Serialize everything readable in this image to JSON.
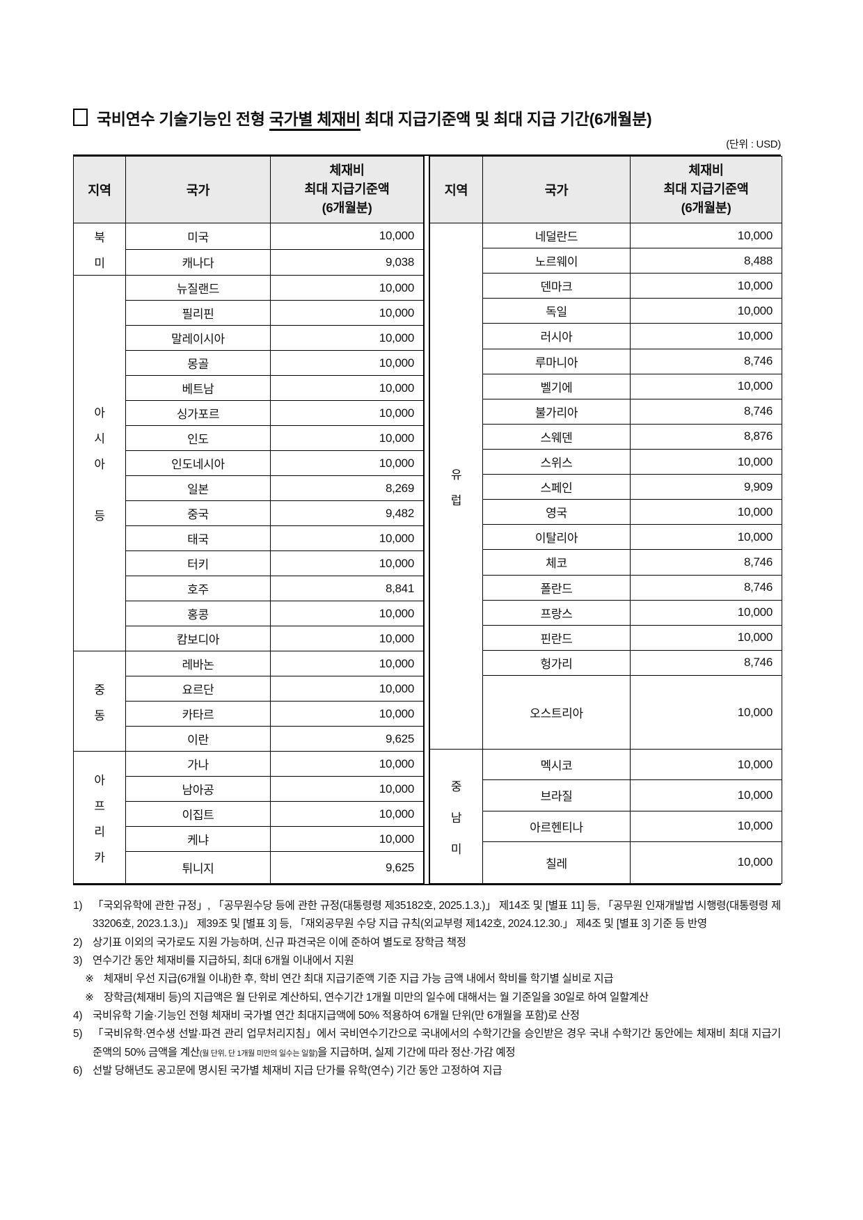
{
  "title": {
    "part1": "국비연수 기술기능인 전형 ",
    "underlined": "국가별 체재비",
    "part2": " 최대 지급기준액 및 최대 지급 기간(6개월분)"
  },
  "unit_label": "(단위 : USD)",
  "table": {
    "headers": {
      "region": "지역",
      "country": "국가",
      "amount_lines": [
        "체재비",
        "최대 지급기준액",
        "(6개월분)"
      ]
    },
    "left": {
      "sections": [
        {
          "region": "북미",
          "rows": [
            {
              "country": "미국",
              "amount": "10,000"
            },
            {
              "country": "캐나다",
              "amount": "9,038"
            }
          ]
        },
        {
          "region": "아시아 등",
          "rows": [
            {
              "country": "뉴질랜드",
              "amount": "10,000"
            },
            {
              "country": "필리핀",
              "amount": "10,000"
            },
            {
              "country": "말레이시아",
              "amount": "10,000"
            },
            {
              "country": "몽골",
              "amount": "10,000"
            },
            {
              "country": "베트남",
              "amount": "10,000"
            },
            {
              "country": "싱가포르",
              "amount": "10,000"
            },
            {
              "country": "인도",
              "amount": "10,000"
            },
            {
              "country": "인도네시아",
              "amount": "10,000"
            },
            {
              "country": "일본",
              "amount": "8,269"
            },
            {
              "country": "중국",
              "amount": "9,482"
            },
            {
              "country": "태국",
              "amount": "10,000"
            },
            {
              "country": "터키",
              "amount": "10,000"
            },
            {
              "country": "호주",
              "amount": "8,841"
            },
            {
              "country": "홍콩",
              "amount": "10,000"
            },
            {
              "country": "캄보디아",
              "amount": "10,000"
            }
          ]
        },
        {
          "region": "중동",
          "rows": [
            {
              "country": "레바논",
              "amount": "10,000"
            },
            {
              "country": "요르단",
              "amount": "10,000"
            },
            {
              "country": "카타르",
              "amount": "10,000"
            },
            {
              "country": "이란",
              "amount": "9,625"
            }
          ]
        },
        {
          "region": "아프리카",
          "rows": [
            {
              "country": "가나",
              "amount": "10,000"
            },
            {
              "country": "남아공",
              "amount": "10,000"
            },
            {
              "country": "이집트",
              "amount": "10,000"
            },
            {
              "country": "케냐",
              "amount": "10,000"
            },
            {
              "country": "튀니지",
              "amount": "9,625"
            }
          ]
        }
      ]
    },
    "right": {
      "sections": [
        {
          "region": "유럽",
          "rows": [
            {
              "country": "네덜란드",
              "amount": "10,000"
            },
            {
              "country": "노르웨이",
              "amount": "8,488"
            },
            {
              "country": "덴마크",
              "amount": "10,000"
            },
            {
              "country": "독일",
              "amount": "10,000"
            },
            {
              "country": "러시아",
              "amount": "10,000"
            },
            {
              "country": "루마니아",
              "amount": "8,746"
            },
            {
              "country": "벨기에",
              "amount": "10,000"
            },
            {
              "country": "불가리아",
              "amount": "8,746"
            },
            {
              "country": "스웨덴",
              "amount": "8,876"
            },
            {
              "country": "스위스",
              "amount": "10,000"
            },
            {
              "country": "스페인",
              "amount": "9,909"
            },
            {
              "country": "영국",
              "amount": "10,000"
            },
            {
              "country": "이탈리아",
              "amount": "10,000"
            },
            {
              "country": "체코",
              "amount": "8,746"
            },
            {
              "country": "폴란드",
              "amount": "8,746"
            },
            {
              "country": "프랑스",
              "amount": "10,000"
            },
            {
              "country": "핀란드",
              "amount": "10,000"
            },
            {
              "country": "헝가리",
              "amount": "8,746"
            },
            {
              "country": "오스트리아",
              "amount": "10,000"
            }
          ]
        },
        {
          "region": "중남미",
          "rows": [
            {
              "country": "멕시코",
              "amount": "10,000"
            },
            {
              "country": "브라질",
              "amount": "10,000"
            },
            {
              "country": "아르헨티나",
              "amount": "10,000"
            },
            {
              "country": "칠레",
              "amount": "10,000"
            }
          ]
        }
      ]
    }
  },
  "footnotes": [
    {
      "marker": "1)",
      "indent": 0,
      "parts": [
        {
          "text": "「국외유학에 관한 규정」, 「공무원수당 등에 관한 규정(대통령령 제35182호, 2025.1.3.)」 제14조 및 [별표 11] 등, 「공무원 인재개발법 시행령(대통령령 제33206호, 2023.1.3.)」 제39조 및 [별표 3] 등, 「재외공무원 수당 지급 규칙(외교부령 제142호, 2024.12.30.」 제4조 및 [별표 3] 기준 등 반영"
        }
      ]
    },
    {
      "marker": "2)",
      "indent": 0,
      "parts": [
        {
          "text": "상기표 이외의 국가로도 지원 가능하며, 신규 파견국은 이에 준하여 별도로 장학금 책정"
        }
      ]
    },
    {
      "marker": "3)",
      "indent": 0,
      "parts": [
        {
          "text": "연수기간 동안 체재비를 지급하되, 최대 6개월 이내에서 지원"
        }
      ]
    },
    {
      "marker": "※",
      "indent": 1,
      "parts": [
        {
          "text": "체재비 우선 지급(6개월 이내)한 후, 학비 연간 최대 지급기준액 기준 지급 가능 금액 내에서 학비를 학기별 실비로 지급"
        }
      ]
    },
    {
      "marker": "※",
      "indent": 1,
      "parts": [
        {
          "text": "장학금(체재비 등)의 지급액은 월 단위로 계산하되, 연수기간 1개월 미만의 일수에 대해서는 월 기준일을 30일로 하여 일할계산"
        }
      ]
    },
    {
      "marker": "4)",
      "indent": 0,
      "parts": [
        {
          "text": "국비유학 기술·기능인 전형 체재비 국가별 연간 최대지급액에 50% 적용하여 6개월 단위(만 6개월을 포함)로 산정"
        }
      ]
    },
    {
      "marker": "5)",
      "indent": 0,
      "parts": [
        {
          "text": "「국비유학·연수생 선발·파견 관리 업무처리지침」에서 국비연수기간으로 국내에서의 수학기간을 승인받은 경우 국내 수학기간 동안에는 체재비 최대 지급기준액의 50% 금액을 계산"
        },
        {
          "text": "(월 단위, 단 1개월 미만의 일수는 일할)",
          "small": true
        },
        {
          "text": "을 지급하며, 실제 기간에 따라 정산·가감 예정"
        }
      ]
    },
    {
      "marker": "6)",
      "indent": 0,
      "parts": [
        {
          "text": "선발 당해년도 공고문에 명시된 국가별 체재비 지급 단가를 유학(연수) 기간 동안 고정하여 지급"
        }
      ]
    }
  ]
}
